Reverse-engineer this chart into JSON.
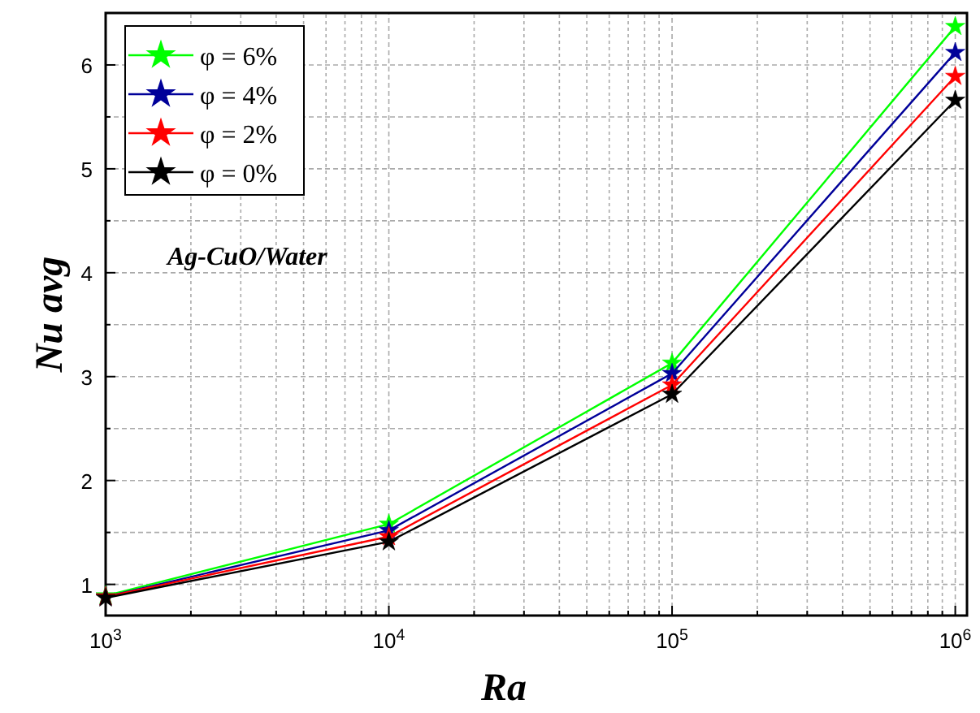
{
  "chart_data": {
    "type": "line",
    "xlabel": "Ra",
    "ylabel": "Nu avg",
    "log": "x",
    "grid": true,
    "legend": "top left",
    "marker": "star",
    "line_style": "solid",
    "annotations": [
      "Ag-CuO/Water"
    ],
    "x": [
      1000,
      10000,
      100000,
      1000000
    ],
    "xlim": [
      1000,
      1100000
    ],
    "xticks": [
      {
        "value": 1000,
        "label": "10$^{3}$"
      },
      {
        "value": 2000,
        "label": null
      },
      {
        "value": 3000,
        "label": null
      },
      {
        "value": 4000,
        "label": null
      },
      {
        "value": 5000,
        "label": null
      },
      {
        "value": 6000,
        "label": null
      },
      {
        "value": 7000,
        "label": null
      },
      {
        "value": 8000,
        "label": null
      },
      {
        "value": 9000,
        "label": null
      },
      {
        "value": 10000,
        "label": "10$^{4}$"
      },
      {
        "value": 20000,
        "label": null
      },
      {
        "value": 30000,
        "label": null
      },
      {
        "value": 40000,
        "label": null
      },
      {
        "value": 50000,
        "label": null
      },
      {
        "value": 60000,
        "label": null
      },
      {
        "value": 70000,
        "label": null
      },
      {
        "value": 80000,
        "label": null
      },
      {
        "value": 90000,
        "label": null
      },
      {
        "value": 100000,
        "label": "10$^{5}$"
      },
      {
        "value": 200000,
        "label": null
      },
      {
        "value": 300000,
        "label": null
      },
      {
        "value": 400000,
        "label": null
      },
      {
        "value": 500000,
        "label": null
      },
      {
        "value": 600000,
        "label": null
      },
      {
        "value": 700000,
        "label": null
      },
      {
        "value": 800000,
        "label": null
      },
      {
        "value": 900000,
        "label": null
      },
      {
        "value": 1000000,
        "label": "10$^{6}$"
      }
    ],
    "ylim": [
      0.7,
      6.5
    ],
    "yticks": [
      1,
      {
        "value": 1.5,
        "label": null
      },
      2,
      {
        "value": 2.5,
        "label": null
      },
      3,
      {
        "value": 3.5,
        "label": null
      },
      4,
      {
        "value": 4.5,
        "label": null
      },
      5,
      {
        "value": 5.5,
        "label": null
      },
      6
    ],
    "series": [
      {
        "name": "φ = 6%",
        "color": "#00ff00",
        "values": [
          0.89,
          1.58,
          3.13,
          6.37
        ]
      },
      {
        "name": "φ = 4%",
        "color": "#000099",
        "values": [
          0.88,
          1.52,
          3.03,
          6.12
        ]
      },
      {
        "name": "φ = 2%",
        "color": "#ff0000",
        "values": [
          0.88,
          1.46,
          2.92,
          5.89
        ]
      },
      {
        "name": "φ = 0%",
        "color": "#000000",
        "values": [
          0.87,
          1.41,
          2.83,
          5.66
        ]
      }
    ]
  }
}
